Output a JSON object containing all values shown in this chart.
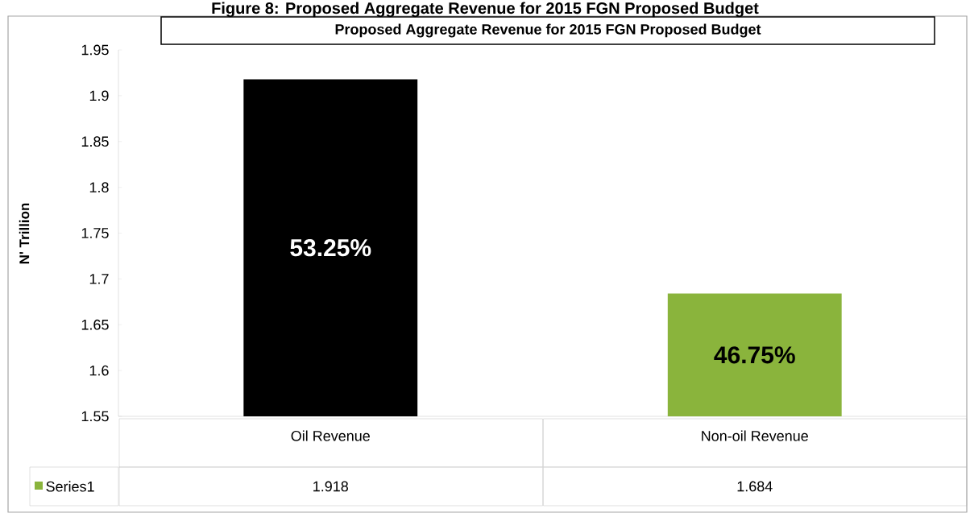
{
  "chart_data": {
    "type": "bar",
    "title": "Figure 8: Proposed Aggregate Revenue for 2015 FGN Proposed Budget",
    "subtitle": "Proposed Aggregate Revenue for 2015 FGN Proposed Budget",
    "ylabel": "N' Trillion",
    "categories": [
      "Oil Revenue",
      "Non-oil Revenue"
    ],
    "series": [
      {
        "name": "Series1",
        "color": "#8ab43c",
        "colors": [
          "#000000",
          "#8ab43c"
        ],
        "values": [
          1.918,
          1.684
        ]
      }
    ],
    "ylim": [
      1.55,
      1.95
    ],
    "yticks": [
      1.55,
      1.6,
      1.65,
      1.7,
      1.75,
      1.8,
      1.85,
      1.9,
      1.95
    ],
    "data_labels": true,
    "annotations": [
      "53.25%",
      "46.75%"
    ]
  }
}
